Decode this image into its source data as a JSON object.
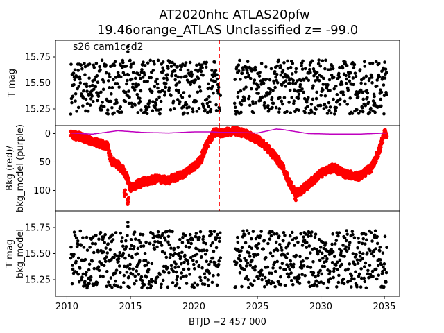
{
  "chart_data": {
    "type": "scatter",
    "title": [
      "AT2020nhc  ATLAS20pfw",
      "19.46orange_ATLAS Unclassified z= -99.0"
    ],
    "xlabel": "BTJD −2 457 000",
    "xlim": [
      2009.1,
      2036.2
    ],
    "x_ticks": [
      2010,
      2015,
      2020,
      2025,
      2030,
      2035
    ],
    "colors": {
      "data": "#000000",
      "bkg": "#ff0000",
      "model": "#bf00bf",
      "marker": "#ff0000"
    },
    "panels": [
      {
        "ylabel": "T mag",
        "ylim": [
          15.91,
          15.09
        ],
        "inverted": true,
        "y_ticks": [
          "15.25",
          "15.50",
          "15.75"
        ],
        "annotation": "s26 cam1ccd2",
        "vline_x": 2022.0,
        "gap": [
          2022.1,
          2023.2
        ],
        "range": [
          2010.3,
          2035.2
        ],
        "mag_min": 15.2,
        "mag_max": 15.72,
        "outliers": [
          {
            "x": 2014.8,
            "y": 15.8
          },
          {
            "x": 2014.8,
            "y": 15.85
          }
        ]
      },
      {
        "ylabel": "Bkg (red)/\nbkg_model (purple)",
        "ylim": [
          -14,
          136
        ],
        "y_ticks": [
          "0",
          "50",
          "100"
        ],
        "bkg_profile": [
          [
            2010.3,
            3
          ],
          [
            2011,
            5
          ],
          [
            2012,
            14
          ],
          [
            2013.2,
            22
          ],
          [
            2013.5,
            48
          ],
          [
            2014,
            55
          ],
          [
            2014.5,
            65
          ],
          [
            2015,
            95
          ],
          [
            2016,
            85
          ],
          [
            2017,
            80
          ],
          [
            2018,
            82
          ],
          [
            2019,
            73
          ],
          [
            2020,
            58
          ],
          [
            2020.5,
            48
          ],
          [
            2021,
            20
          ],
          [
            2021.6,
            -2
          ],
          [
            2022.1,
            0
          ],
          [
            2023.2,
            -5
          ],
          [
            2024,
            0
          ],
          [
            2025,
            10
          ],
          [
            2026,
            30
          ],
          [
            2027,
            58
          ],
          [
            2027.5,
            85
          ],
          [
            2028,
            105
          ],
          [
            2028.5,
            100
          ],
          [
            2029,
            90
          ],
          [
            2030,
            70
          ],
          [
            2031,
            60
          ],
          [
            2032,
            72
          ],
          [
            2033,
            75
          ],
          [
            2034,
            60
          ],
          [
            2034.6,
            30
          ],
          [
            2035,
            0
          ],
          [
            2035.2,
            1
          ]
        ],
        "spikes": [
          [
            2014.8,
            130
          ],
          [
            2014.6,
            115
          ],
          [
            2028,
            120
          ]
        ],
        "model_profile": [
          [
            2010.3,
            -1
          ],
          [
            2012,
            1
          ],
          [
            2014,
            -5
          ],
          [
            2016,
            -2
          ],
          [
            2018,
            -1
          ],
          [
            2020,
            -3
          ],
          [
            2021.5,
            -3
          ],
          [
            2022.1,
            -2
          ],
          [
            2023.2,
            -2
          ],
          [
            2025,
            -1
          ],
          [
            2026.5,
            -8
          ],
          [
            2027,
            -7
          ],
          [
            2029,
            0
          ],
          [
            2031,
            1
          ],
          [
            2033,
            1
          ],
          [
            2035.2,
            -1
          ]
        ]
      },
      {
        "ylabel": "T mag\nbkg_model",
        "ylim": [
          15.91,
          15.09
        ],
        "inverted": true,
        "y_ticks": [
          "15.25",
          "15.50",
          "15.75"
        ],
        "gap": [
          2022.1,
          2023.2
        ],
        "range": [
          2010.3,
          2035.2
        ],
        "mag_min": 15.17,
        "mag_max": 15.72,
        "outliers": [
          {
            "x": 2014.8,
            "y": 15.8
          },
          {
            "x": 2014.8,
            "y": 15.76
          }
        ]
      }
    ]
  }
}
